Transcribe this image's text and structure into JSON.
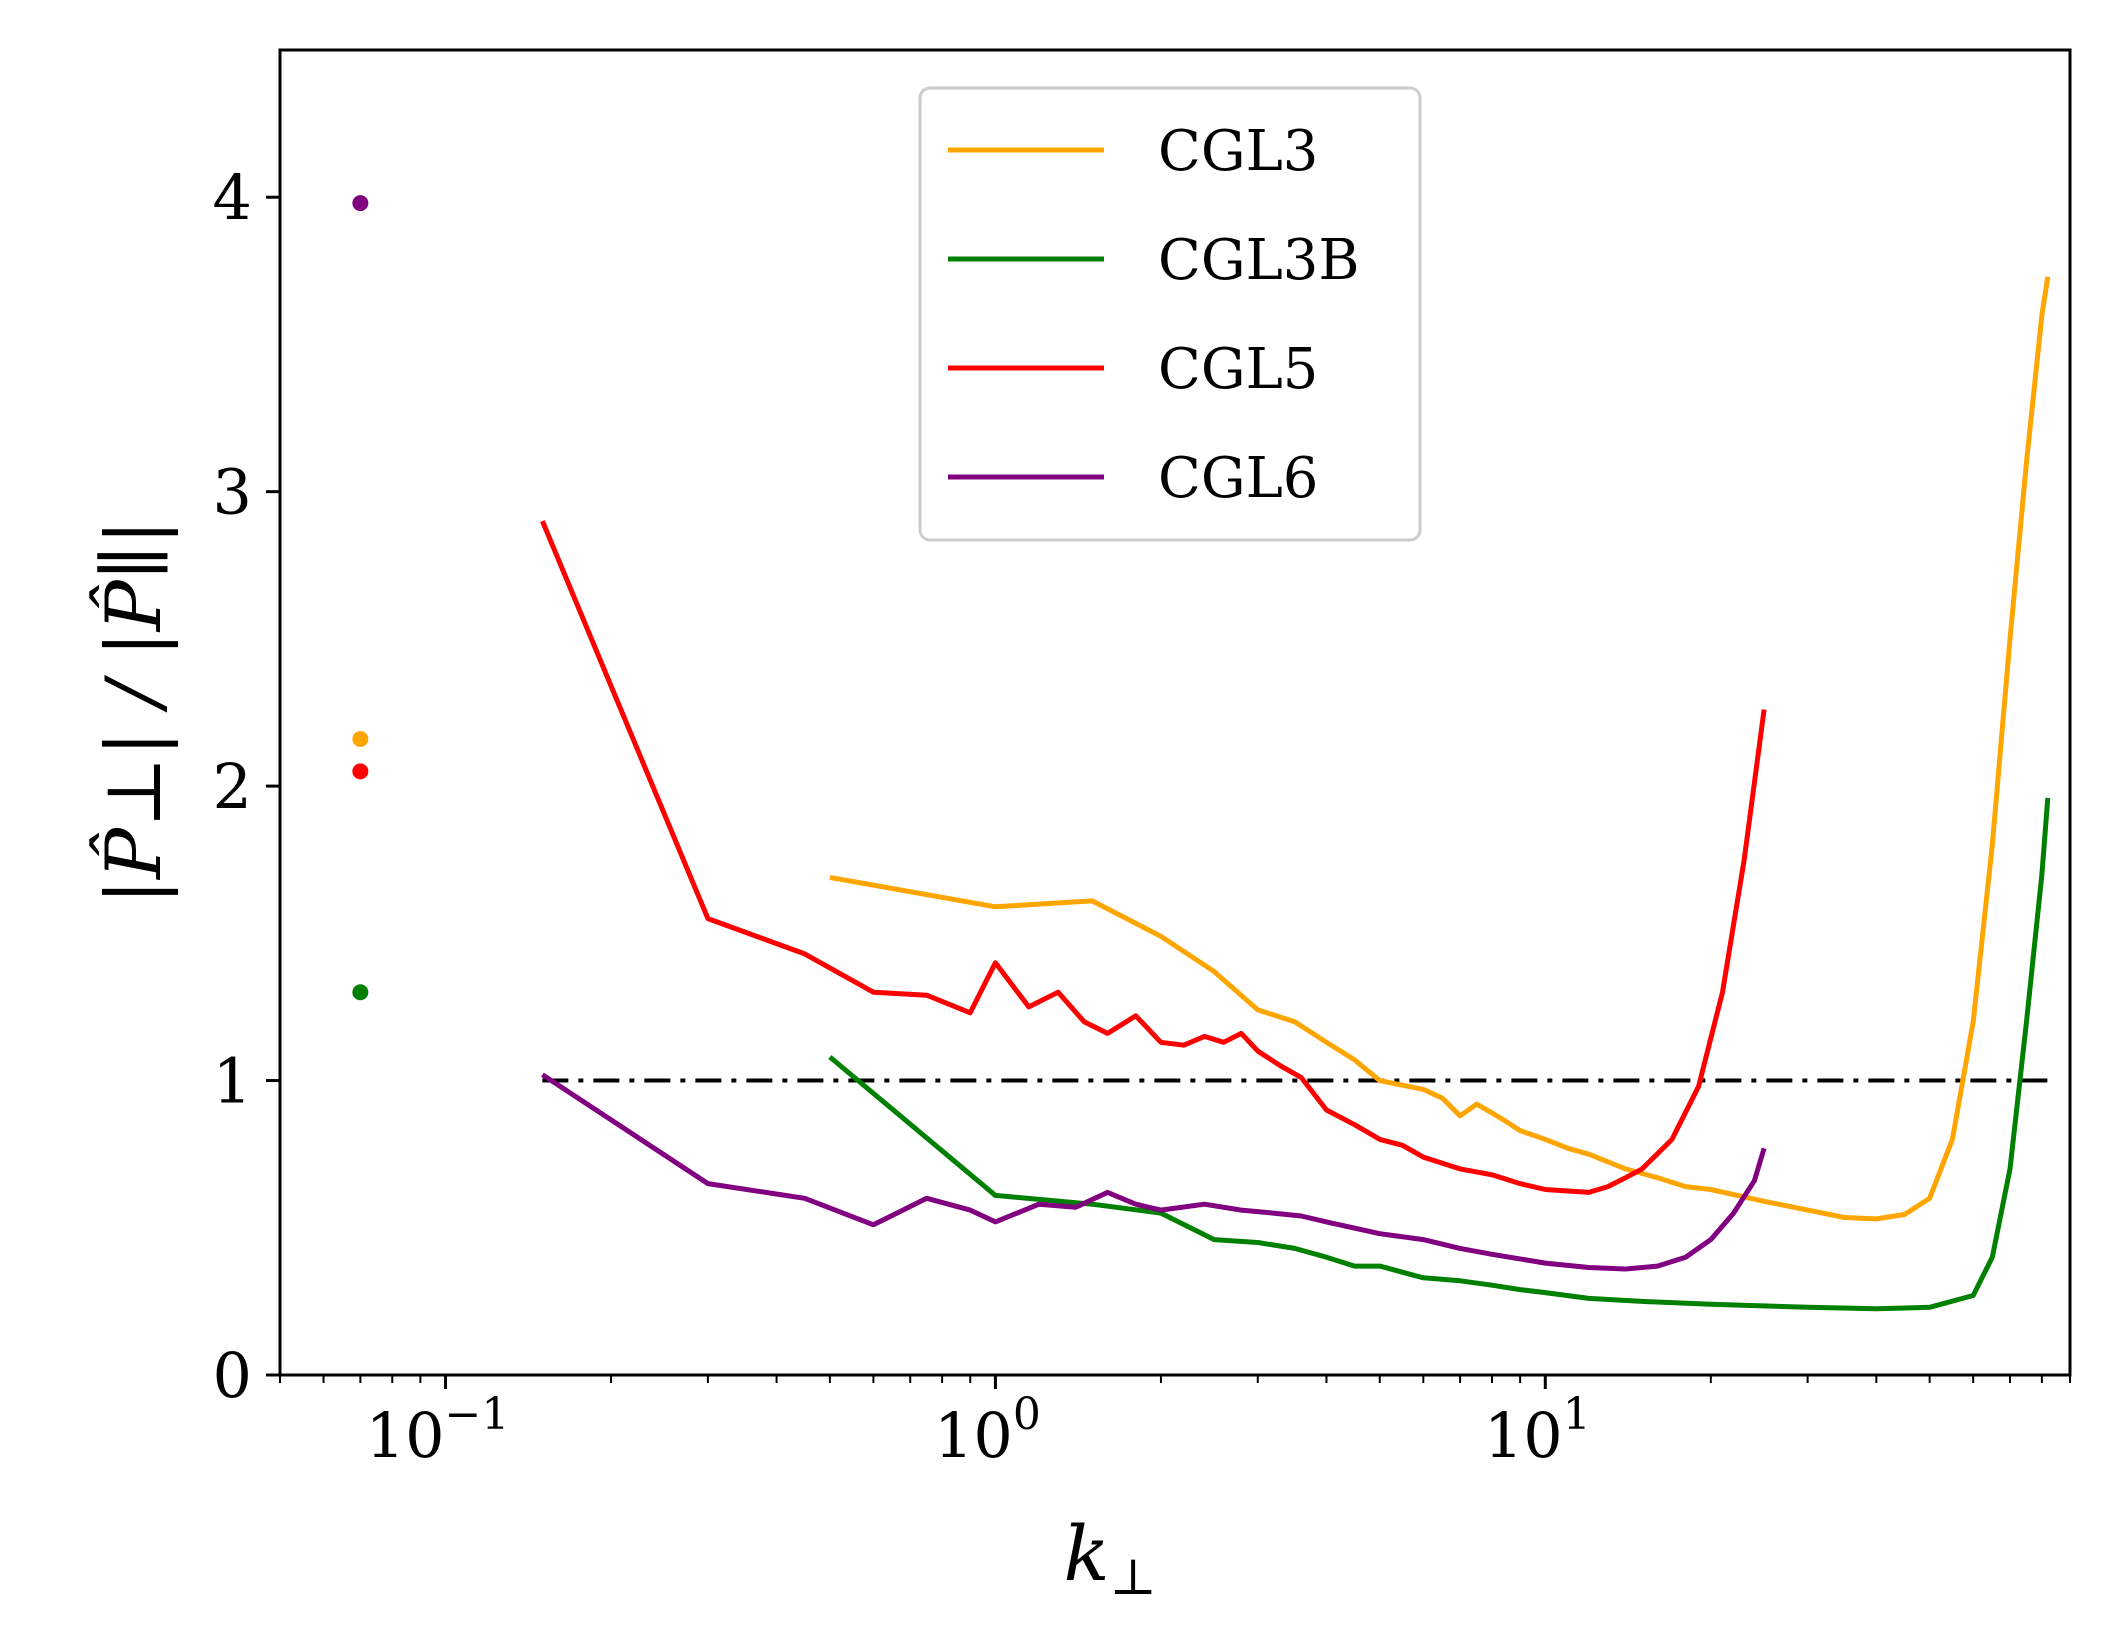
{
  "chart_data": {
    "type": "line",
    "title": "",
    "xlabel": "k",
    "xlabel_sub": "⊥",
    "ylabel": "|P̂⊥| / |P̂∥|",
    "xscale": "log",
    "xlim": [
      0.05,
      90
    ],
    "ylim": [
      0,
      4.5
    ],
    "yticks": [
      0,
      1,
      2,
      3,
      4
    ],
    "ytick_labels": [
      "0",
      "1",
      "2",
      "3",
      "4"
    ],
    "xticks": [
      0.1,
      1,
      10
    ],
    "xtick_bases": [
      "10",
      "10",
      "10"
    ],
    "xtick_exps": [
      "−1",
      "0",
      "1"
    ],
    "legend_position": "top-center",
    "reference_line": {
      "y": 1,
      "style": "dash-dot",
      "color": "#000000"
    },
    "series": [
      {
        "name": "CGL3",
        "color": "#ffa500",
        "marker_point": {
          "x": 0.07,
          "y": 2.16
        },
        "points": [
          [
            0.5,
            1.69
          ],
          [
            1.0,
            1.59
          ],
          [
            1.5,
            1.61
          ],
          [
            2.0,
            1.49
          ],
          [
            2.5,
            1.37
          ],
          [
            3.0,
            1.24
          ],
          [
            3.5,
            1.2
          ],
          [
            4.0,
            1.13
          ],
          [
            4.5,
            1.07
          ],
          [
            5.0,
            1.0
          ],
          [
            6.0,
            0.97
          ],
          [
            6.5,
            0.94
          ],
          [
            7.0,
            0.88
          ],
          [
            7.5,
            0.92
          ],
          [
            8.0,
            0.89
          ],
          [
            8.5,
            0.86
          ],
          [
            9.0,
            0.83
          ],
          [
            10.0,
            0.8
          ],
          [
            11.0,
            0.77
          ],
          [
            12.0,
            0.75
          ],
          [
            14.0,
            0.7
          ],
          [
            16.0,
            0.67
          ],
          [
            18.0,
            0.64
          ],
          [
            20.0,
            0.63
          ],
          [
            25.0,
            0.59
          ],
          [
            30.0,
            0.56
          ],
          [
            35.0,
            0.535
          ],
          [
            40.0,
            0.53
          ],
          [
            45.0,
            0.545
          ],
          [
            50.0,
            0.6
          ],
          [
            55.0,
            0.8
          ],
          [
            60.0,
            1.2
          ],
          [
            65.0,
            1.8
          ],
          [
            70.0,
            2.5
          ],
          [
            75.0,
            3.1
          ],
          [
            80.0,
            3.6
          ],
          [
            82.0,
            3.73
          ]
        ]
      },
      {
        "name": "CGL3B",
        "color": "#008000",
        "marker_point": {
          "x": 0.07,
          "y": 1.3
        },
        "points": [
          [
            0.5,
            1.08
          ],
          [
            1.0,
            0.61
          ],
          [
            1.5,
            0.58
          ],
          [
            2.0,
            0.55
          ],
          [
            2.5,
            0.46
          ],
          [
            3.0,
            0.45
          ],
          [
            3.5,
            0.43
          ],
          [
            4.0,
            0.4
          ],
          [
            4.5,
            0.37
          ],
          [
            5.0,
            0.37
          ],
          [
            6.0,
            0.33
          ],
          [
            7.0,
            0.32
          ],
          [
            8.0,
            0.305
          ],
          [
            9.0,
            0.29
          ],
          [
            10.0,
            0.28
          ],
          [
            12.0,
            0.26
          ],
          [
            15.0,
            0.25
          ],
          [
            20.0,
            0.24
          ],
          [
            30.0,
            0.23
          ],
          [
            40.0,
            0.225
          ],
          [
            50.0,
            0.23
          ],
          [
            60.0,
            0.27
          ],
          [
            65.0,
            0.4
          ],
          [
            70.0,
            0.7
          ],
          [
            75.0,
            1.2
          ],
          [
            80.0,
            1.7
          ],
          [
            82.0,
            1.96
          ]
        ]
      },
      {
        "name": "CGL5",
        "color": "#ff0000",
        "marker_point": {
          "x": 0.07,
          "y": 2.05
        },
        "points": [
          [
            0.15,
            2.9
          ],
          [
            0.3,
            1.55
          ],
          [
            0.45,
            1.43
          ],
          [
            0.6,
            1.3
          ],
          [
            0.75,
            1.29
          ],
          [
            0.9,
            1.23
          ],
          [
            1.0,
            1.4
          ],
          [
            1.15,
            1.25
          ],
          [
            1.3,
            1.3
          ],
          [
            1.45,
            1.2
          ],
          [
            1.6,
            1.16
          ],
          [
            1.8,
            1.22
          ],
          [
            2.0,
            1.13
          ],
          [
            2.2,
            1.12
          ],
          [
            2.4,
            1.15
          ],
          [
            2.6,
            1.13
          ],
          [
            2.8,
            1.16
          ],
          [
            3.0,
            1.1
          ],
          [
            3.3,
            1.05
          ],
          [
            3.6,
            1.01
          ],
          [
            4.0,
            0.9
          ],
          [
            4.5,
            0.85
          ],
          [
            5.0,
            0.8
          ],
          [
            5.5,
            0.78
          ],
          [
            6.0,
            0.74
          ],
          [
            7.0,
            0.7
          ],
          [
            8.0,
            0.68
          ],
          [
            9.0,
            0.65
          ],
          [
            10.0,
            0.63
          ],
          [
            11.0,
            0.625
          ],
          [
            12.0,
            0.62
          ],
          [
            13.0,
            0.64
          ],
          [
            14.0,
            0.67
          ],
          [
            15.0,
            0.7
          ],
          [
            17.0,
            0.8
          ],
          [
            19.0,
            0.98
          ],
          [
            21.0,
            1.3
          ],
          [
            23.0,
            1.75
          ],
          [
            25.0,
            2.26
          ]
        ]
      },
      {
        "name": "CGL6",
        "color": "#800080",
        "marker_point": {
          "x": 0.07,
          "y": 3.98
        },
        "points": [
          [
            0.15,
            1.02
          ],
          [
            0.3,
            0.65
          ],
          [
            0.45,
            0.6
          ],
          [
            0.6,
            0.51
          ],
          [
            0.75,
            0.6
          ],
          [
            0.9,
            0.56
          ],
          [
            1.0,
            0.52
          ],
          [
            1.2,
            0.58
          ],
          [
            1.4,
            0.57
          ],
          [
            1.6,
            0.62
          ],
          [
            1.8,
            0.58
          ],
          [
            2.0,
            0.56
          ],
          [
            2.4,
            0.58
          ],
          [
            2.8,
            0.56
          ],
          [
            3.2,
            0.55
          ],
          [
            3.6,
            0.54
          ],
          [
            4.0,
            0.52
          ],
          [
            5.0,
            0.48
          ],
          [
            6.0,
            0.46
          ],
          [
            7.0,
            0.43
          ],
          [
            8.0,
            0.41
          ],
          [
            10.0,
            0.38
          ],
          [
            12.0,
            0.365
          ],
          [
            14.0,
            0.36
          ],
          [
            16.0,
            0.37
          ],
          [
            18.0,
            0.4
          ],
          [
            20.0,
            0.46
          ],
          [
            22.0,
            0.55
          ],
          [
            24.0,
            0.66
          ],
          [
            25.0,
            0.77
          ]
        ]
      }
    ]
  }
}
